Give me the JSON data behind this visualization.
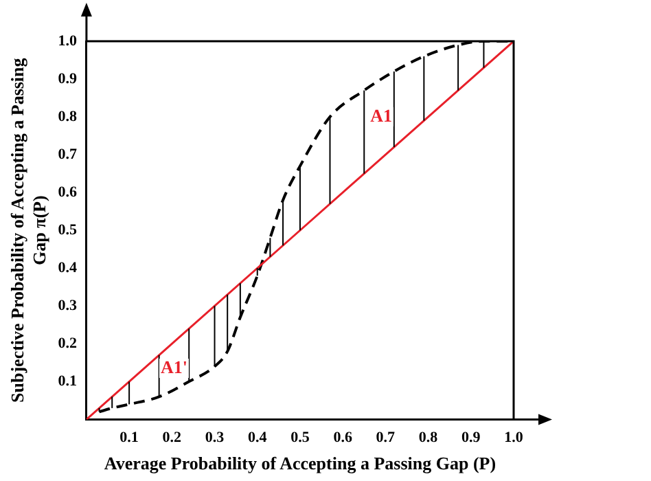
{
  "chart_data": {
    "type": "line",
    "xlabel": "Average Probability of Accepting a Passing Gap (P)",
    "ylabel": "Subjective Probability of Accepting a Passing Gap π(P)",
    "series": [
      {
        "color": "#e8202a",
        "line_style": "solid",
        "x": [
          0,
          1
        ],
        "values": [
          0,
          1
        ]
      },
      {
        "color": "#000000",
        "line_style": "dashed",
        "x": [
          0.03,
          0.06,
          0.1,
          0.17,
          0.24,
          0.3,
          0.33,
          0.36,
          0.4,
          0.43,
          0.46,
          0.5,
          0.57,
          0.65,
          0.72,
          0.79,
          0.87,
          0.93,
          1
        ],
        "values": [
          0.02,
          0.03,
          0.04,
          0.06,
          0.1,
          0.14,
          0.18,
          0.27,
          0.38,
          0.48,
          0.58,
          0.67,
          0.8,
          0.87,
          0.92,
          0.96,
          0.99,
          1,
          1
        ],
        "errors": [
          [
            0.02,
            0.03
          ],
          [
            0.03,
            0.06
          ],
          [
            0.04,
            0.1
          ],
          [
            0.06,
            0.17
          ],
          [
            0.1,
            0.24
          ],
          [
            0.14,
            0.3
          ],
          [
            0.18,
            0.33
          ],
          [
            0.27,
            0.36
          ],
          [
            0.38,
            0.4
          ],
          [
            0.43,
            0.48
          ],
          [
            0.46,
            0.58
          ],
          [
            0.5,
            0.67
          ],
          [
            0.57,
            0.8
          ],
          [
            0.65,
            0.87
          ],
          [
            0.72,
            0.92
          ],
          [
            0.79,
            0.96
          ],
          [
            0.87,
            0.99
          ],
          [
            0.93,
            1
          ],
          null
        ]
      }
    ],
    "xlim": [
      0,
      1
    ],
    "ylim": [
      0,
      1
    ],
    "xticks": [
      0.1,
      0.2,
      0.3,
      0.4,
      0.5,
      0.6,
      0.7,
      0.8,
      0.9,
      {
        "value": 1,
        "label": "1.0"
      }
    ],
    "yticks": [
      0.1,
      0.2,
      0.3,
      0.4,
      0.5,
      0.6,
      0.7,
      0.8,
      0.9,
      {
        "value": 1,
        "label": "1.0"
      }
    ],
    "annotations": [
      "A1",
      "A1'"
    ],
    "grid": false,
    "legend": false,
    "marker": "none"
  }
}
